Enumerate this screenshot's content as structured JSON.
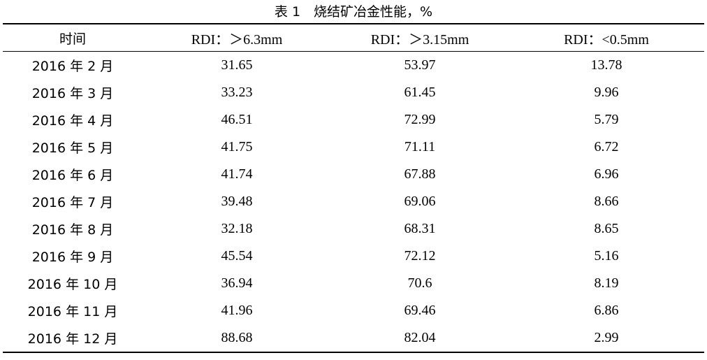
{
  "caption": "表 1　烧结矿冶金性能，%",
  "table": {
    "headers": [
      "时间",
      "RDI：＞6.3mm",
      "RDI：＞3.15mm",
      "RDI：<0.5mm"
    ],
    "rows": [
      [
        "2016 年 2 月",
        "31.65",
        "53.97",
        "13.78"
      ],
      [
        "2016 年 3 月",
        "33.23",
        "61.45",
        "9.96"
      ],
      [
        "2016 年 4 月",
        "46.51",
        "72.99",
        "5.79"
      ],
      [
        "2016 年 5 月",
        "41.75",
        "71.11",
        "6.72"
      ],
      [
        "2016 年 6 月",
        "41.74",
        "67.88",
        "6.96"
      ],
      [
        "2016 年 7 月",
        "39.48",
        "69.06",
        "8.66"
      ],
      [
        "2016 年 8 月",
        "32.18",
        "68.31",
        "8.65"
      ],
      [
        "2016 年 9 月",
        "45.54",
        "72.12",
        "5.16"
      ],
      [
        "2016 年 10 月",
        "36.94",
        "70.6",
        "8.19"
      ],
      [
        "2016 年 11 月",
        "41.96",
        "69.46",
        "6.86"
      ],
      [
        "2016 年 12 月",
        "88.68",
        "82.04",
        "2.99"
      ]
    ]
  }
}
